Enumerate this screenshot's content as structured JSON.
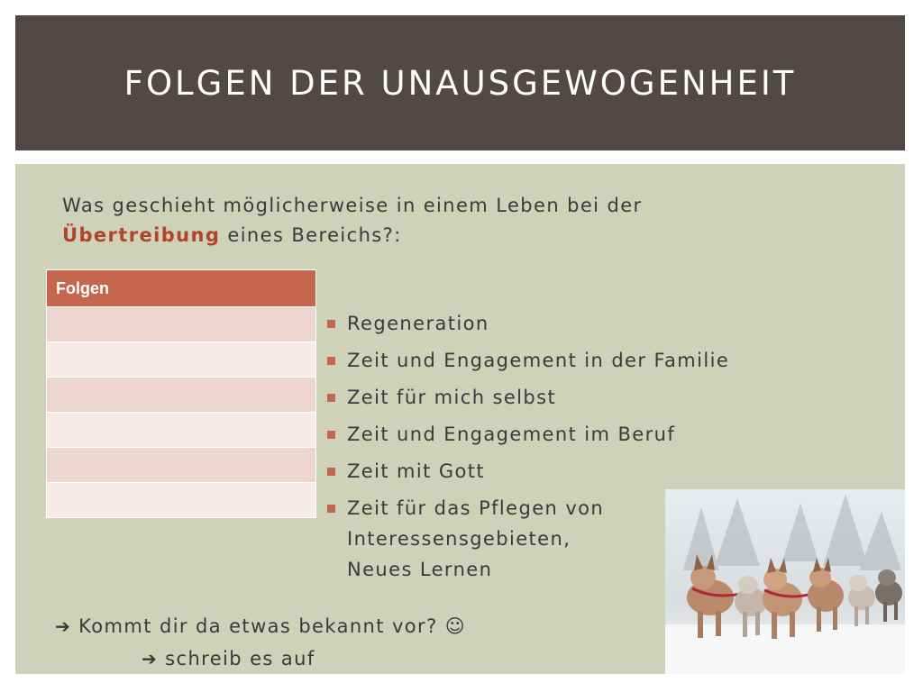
{
  "header": {
    "title": "Folgen der Unausgewogenheit"
  },
  "question": {
    "prefix": "Was geschieht möglicherweise in einem Leben bei der ",
    "highlight": "Übertreibung",
    "suffix": " eines Bereichs?:"
  },
  "table": {
    "header": "Folgen",
    "rows": [
      "",
      "",
      "",
      "",
      "",
      ""
    ]
  },
  "bullets": [
    "Regeneration",
    "Zeit und Engagement in der Familie",
    "Zeit für mich selbst",
    "Zeit und Engagement im Beruf",
    "Zeit mit Gott"
  ],
  "bullet_last": {
    "line1": "Zeit für das Pflegen von",
    "line2": "Interessensgebieten,",
    "line3": "Neues Lernen"
  },
  "prompts": {
    "line1": "Kommt dir da etwas bekannt vor? ☺",
    "line2": "schreib es auf"
  },
  "icons": {
    "arrow": "arrow-right-icon",
    "bullet": "square-bullet-icon",
    "photo": "sled-dogs-photo"
  },
  "colors": {
    "header_bg": "#524947",
    "content_bg": "#cdd2b8",
    "accent": "#c5674f",
    "highlight_text": "#b0432a"
  }
}
